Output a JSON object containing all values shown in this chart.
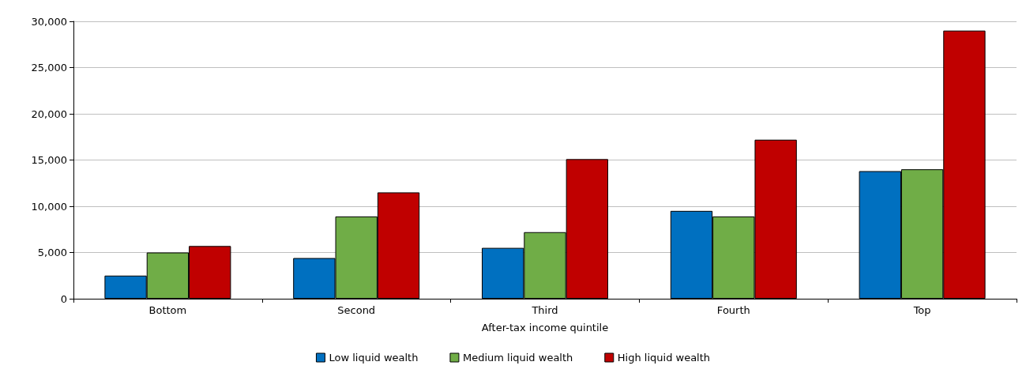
{
  "chart_data": {
    "type": "bar",
    "xlabel": "After-tax income quintile",
    "categories": [
      "Bottom",
      "Second",
      "Third",
      "Fourth",
      "Top"
    ],
    "series": [
      {
        "name": "Low liquid wealth",
        "color": "#0070c0",
        "values": [
          2500,
          4400,
          5500,
          9500,
          13800
        ]
      },
      {
        "name": "Medium liquid wealth",
        "color": "#70ad47",
        "values": [
          5000,
          8900,
          7200,
          8900,
          14000
        ]
      },
      {
        "name": "High liquid wealth",
        "color": "#c00000",
        "values": [
          5700,
          11500,
          15100,
          17200,
          29000
        ]
      }
    ],
    "ylim": [
      0,
      30000
    ],
    "yticks": [
      0,
      {
        "value": 5000,
        "label": "5,000"
      },
      {
        "value": 10000,
        "label": "10,000"
      },
      {
        "value": 15000,
        "label": "15,000"
      },
      {
        "value": 20000,
        "label": "20,000"
      },
      {
        "value": 25000,
        "label": "25,000"
      },
      {
        "value": 30000,
        "label": "30,000"
      }
    ],
    "grid": "y",
    "legend": "bottom"
  }
}
